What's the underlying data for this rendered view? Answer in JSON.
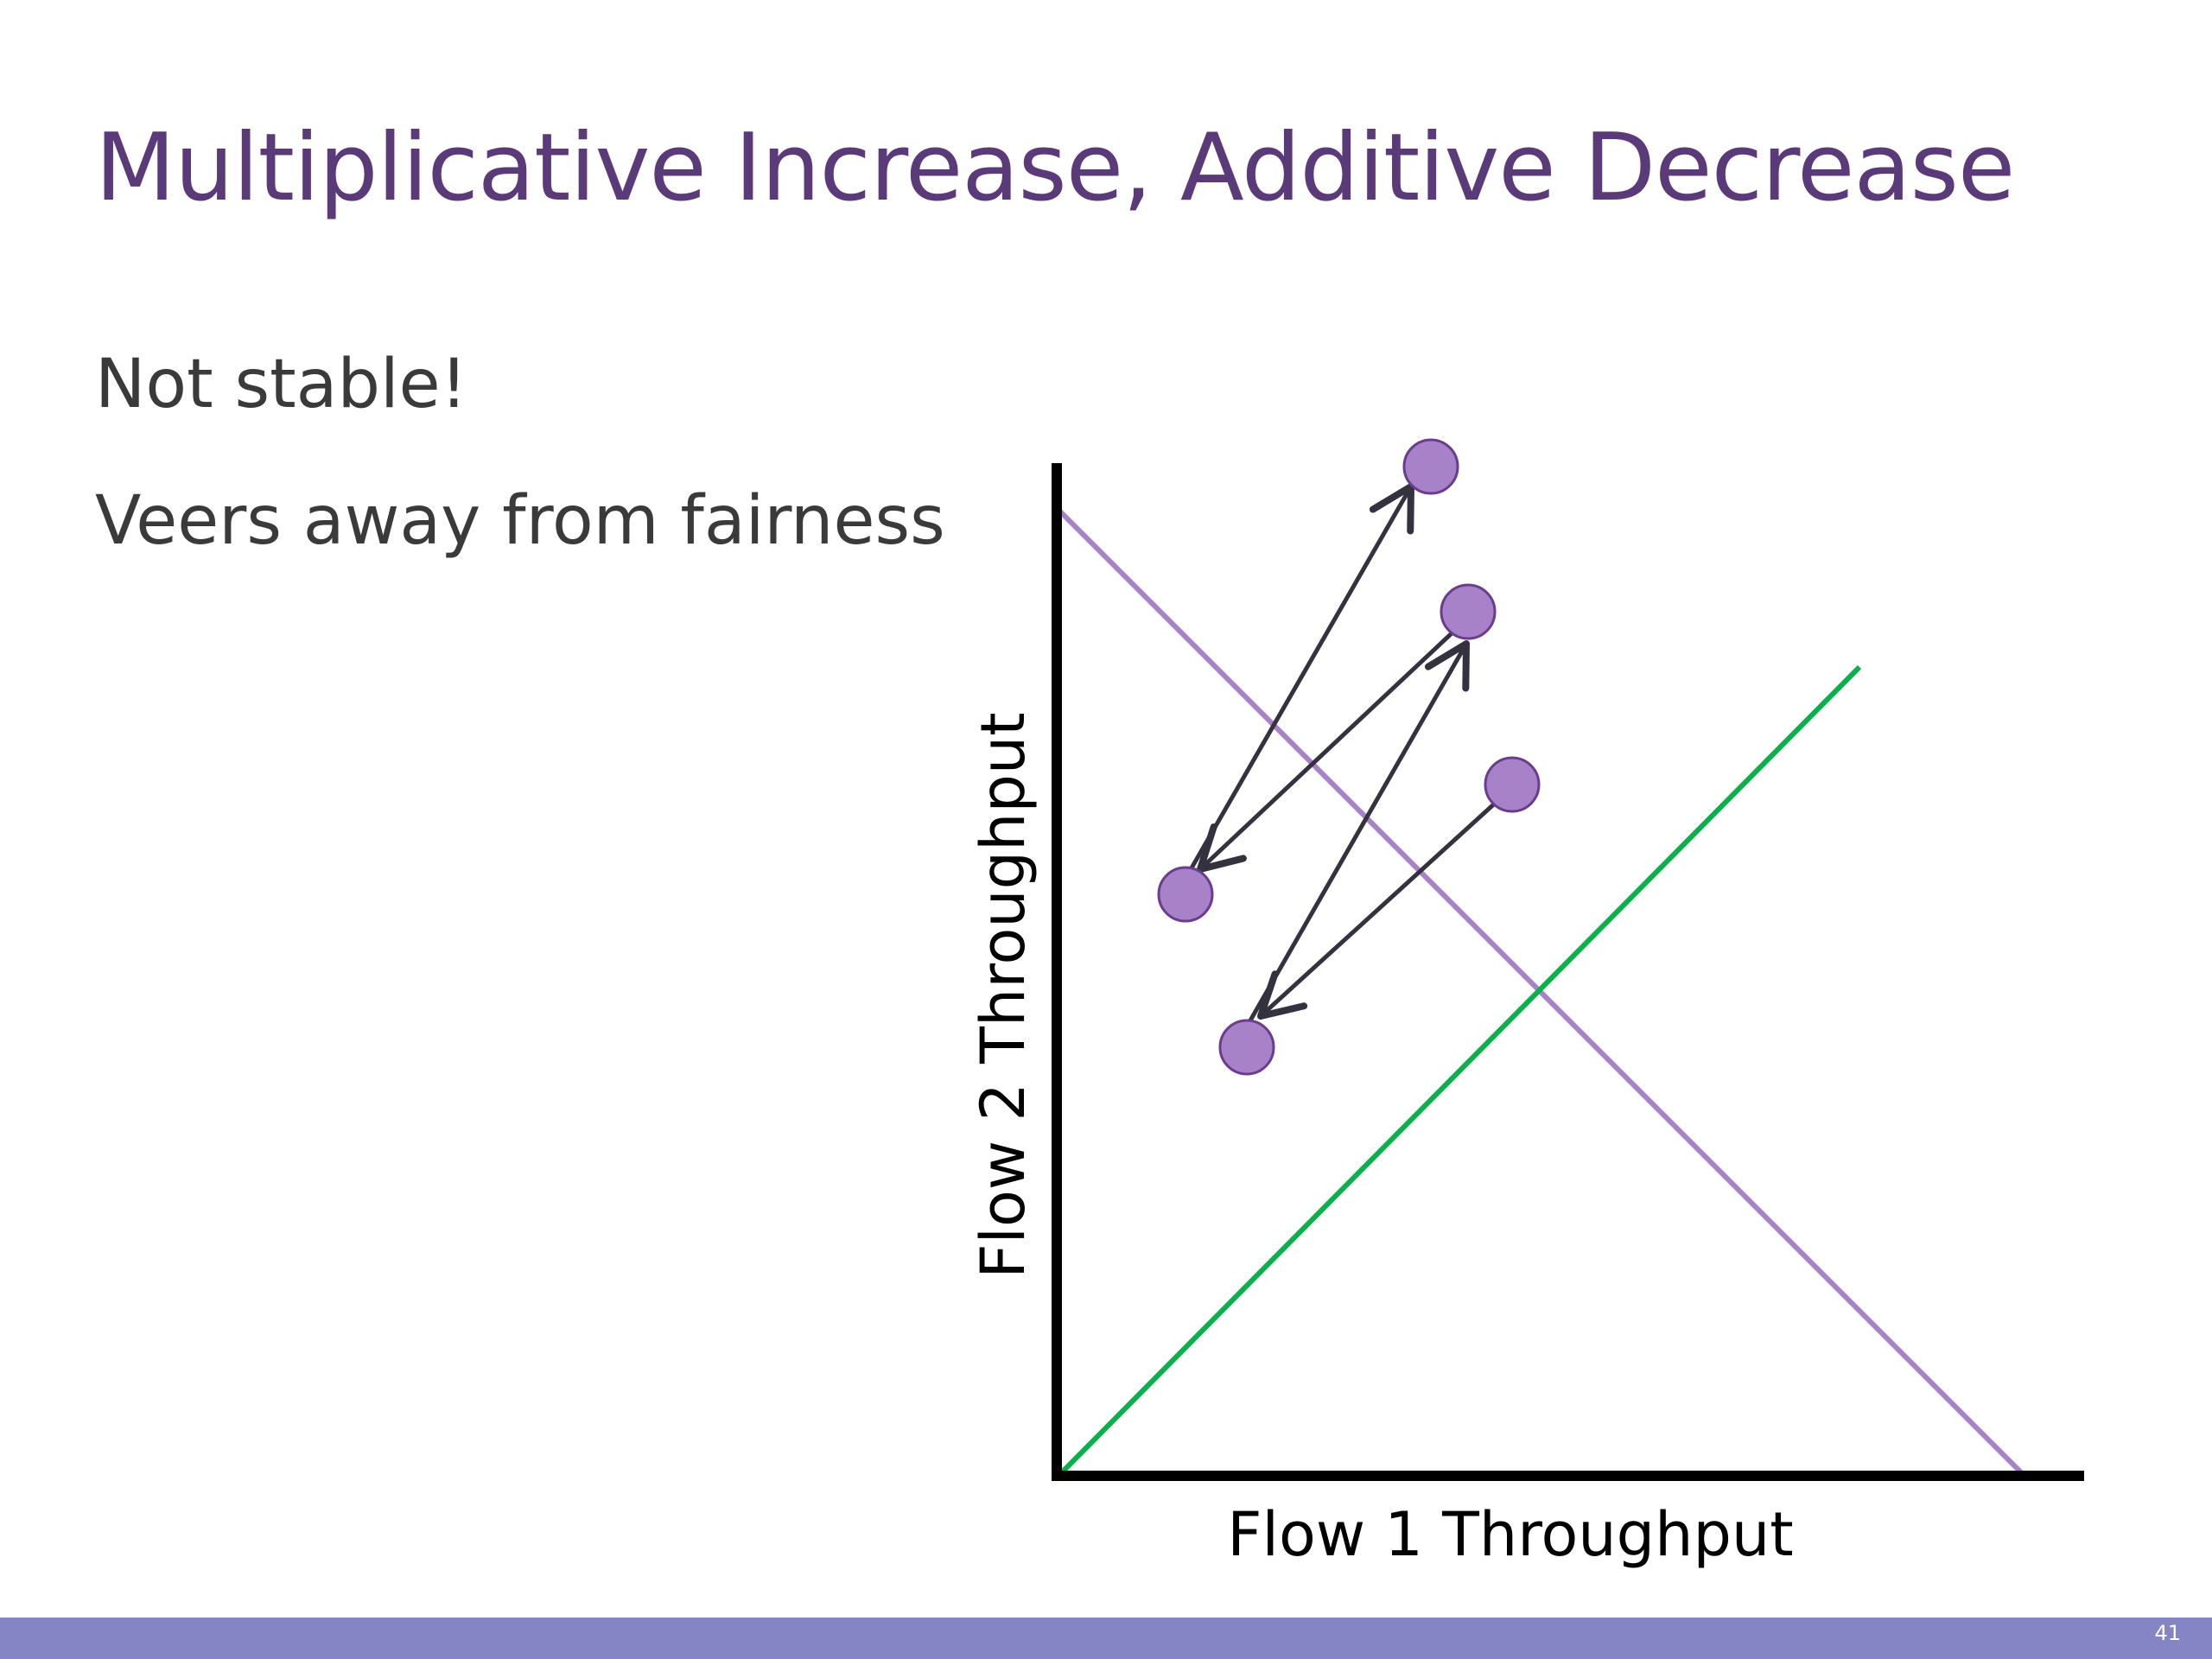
{
  "slide": {
    "title": "Multiplicative Increase, Additive Decrease",
    "bullets": [
      "Not stable!",
      "Veers away from fairness"
    ],
    "page_number": "41"
  },
  "diagram": {
    "x_axis_label": "Flow 1 Throughput",
    "y_axis_label": "Flow 2 Throughput",
    "colors": {
      "axis": "#000000",
      "efficiency_line": "#a882c9",
      "fairness_line": "#0ab04a",
      "point_fill": "#a882c9",
      "point_stroke": "#6a3c8e",
      "arrow": "#33323e",
      "title": "#5b3a7a",
      "text": "#3a3a3a",
      "footer": "#8584c4"
    },
    "points": [
      "start",
      "after-decrease-1",
      "after-increase-1",
      "after-decrease-2",
      "after-increase-2"
    ],
    "arrows": [
      "decrease-1",
      "increase-1",
      "decrease-2",
      "increase-2"
    ]
  }
}
